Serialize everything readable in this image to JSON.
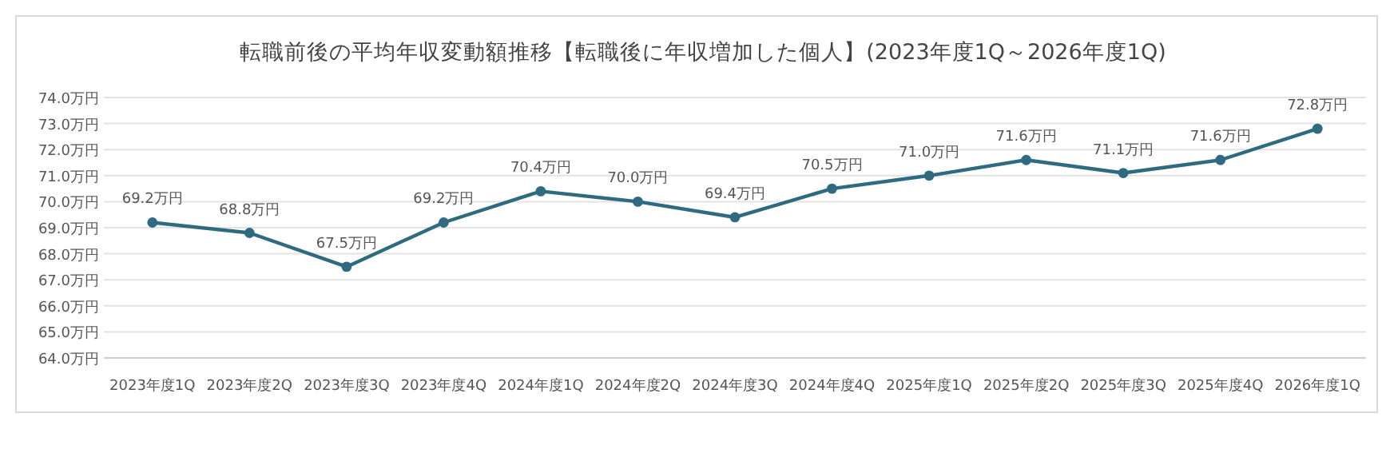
{
  "chart_data": {
    "type": "line",
    "title": "転職前後の平均年収変動額推移【転職後に年収増加した個人】(2023年度1Q～2026年度1Q)",
    "categories": [
      "2023年度1Q",
      "2023年度2Q",
      "2023年度3Q",
      "2023年度4Q",
      "2024年度1Q",
      "2024年度2Q",
      "2024年度3Q",
      "2024年度4Q",
      "2025年度1Q",
      "2025年度2Q",
      "2025年度3Q",
      "2025年度4Q",
      "2026年度1Q"
    ],
    "values": [
      69.2,
      68.8,
      67.5,
      69.2,
      70.4,
      70.0,
      69.4,
      70.5,
      71.0,
      71.6,
      71.1,
      71.6,
      72.8
    ],
    "value_labels": [
      "69.2万円",
      "68.8万円",
      "67.5万円",
      "69.2万円",
      "70.4万円",
      "70.0万円",
      "69.4万円",
      "70.5万円",
      "71.0万円",
      "71.6万円",
      "71.1万円",
      "71.6万円",
      "72.8万円"
    ],
    "color": "#2e6b80",
    "marker": "circle",
    "grid": "y",
    "ylim": [
      64,
      74
    ],
    "yticks": [
      {
        "value": 64,
        "label": "64.0万円"
      },
      {
        "value": 65,
        "label": "65.0万円"
      },
      {
        "value": 66,
        "label": "66.0万円"
      },
      {
        "value": 67,
        "label": "67.0万円"
      },
      {
        "value": 68,
        "label": "68.0万円"
      },
      {
        "value": 69,
        "label": "69.0万円"
      },
      {
        "value": 70,
        "label": "70.0万円"
      },
      {
        "value": 71,
        "label": "71.0万円"
      },
      {
        "value": 72,
        "label": "72.0万円"
      },
      {
        "value": 73,
        "label": "73.0万円"
      },
      {
        "value": 74,
        "label": "74.0万円"
      }
    ]
  }
}
